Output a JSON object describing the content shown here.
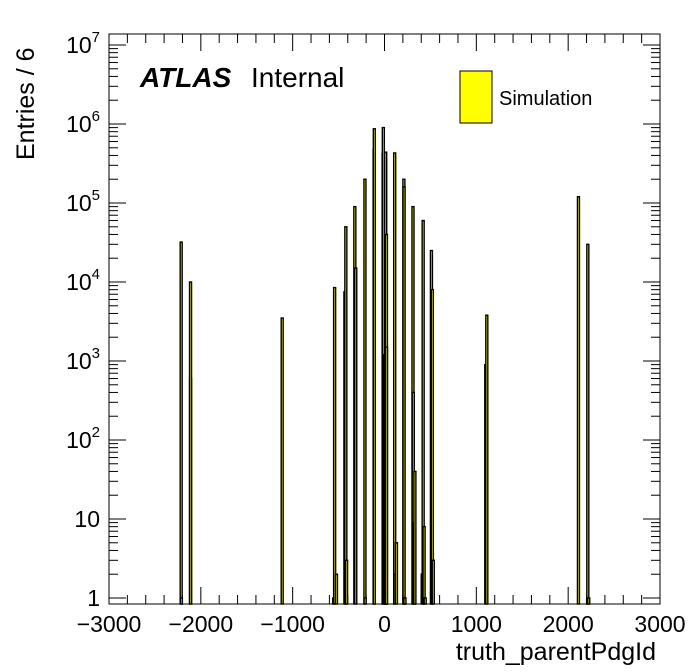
{
  "chart_data": {
    "type": "bar",
    "xlabel": "truth_parentPdgId",
    "ylabel": "Entries / 6",
    "xlim": [
      -3000,
      3000
    ],
    "ylim": [
      0.8,
      10000000
    ],
    "y_scale": "log",
    "x_ticks": [
      {
        "value": -3000,
        "label": "−3000"
      },
      {
        "value": -2000,
        "label": "−2000"
      },
      {
        "value": -1000,
        "label": "−1000"
      },
      {
        "value": 0,
        "label": "0"
      },
      {
        "value": 1000,
        "label": "1000"
      },
      {
        "value": 2000,
        "label": "2000"
      },
      {
        "value": 3000,
        "label": "3000"
      }
    ],
    "y_ticks": [
      {
        "value": 1,
        "base": "1",
        "exp": ""
      },
      {
        "value": 10,
        "base": "10",
        "exp": ""
      },
      {
        "value": 100,
        "base": "10",
        "exp": "2"
      },
      {
        "value": 1000,
        "base": "10",
        "exp": "3"
      },
      {
        "value": 10000,
        "base": "10",
        "exp": "4"
      },
      {
        "value": 100000,
        "base": "10",
        "exp": "5"
      },
      {
        "value": 1000000,
        "base": "10",
        "exp": "6"
      },
      {
        "value": 10000000,
        "base": "10",
        "exp": "7"
      }
    ],
    "atlas_label": "ATLAS",
    "status_label": "Internal",
    "legend": {
      "placement": "top-right",
      "entries": [
        {
          "name": "Simulation",
          "color": "#ffff00"
        }
      ]
    },
    "series": [
      {
        "name": "Simulation",
        "fill": "#ffff00",
        "line": "#000000",
        "x": [
          -2214,
          -2112,
          -2112,
          -2212,
          -1114,
          -553,
          -543,
          -523,
          -431,
          -421,
          -413,
          -323,
          -313,
          -213,
          -211,
          -113,
          -111,
          -15,
          -13,
          0,
          11,
          13,
          15,
          21,
          22,
          111,
          113,
          130,
          211,
          213,
          221,
          223,
          310,
          313,
          321,
          323,
          331,
          411,
          421,
          431,
          443,
          511,
          521,
          531,
          1103,
          1114,
          2112,
          2212,
          2214,
          2224
        ],
        "values": [
          32000,
          600,
          10000,
          1,
          3500,
          1,
          8500,
          2,
          7500,
          50000,
          3,
          90000,
          15000,
          200000,
          1,
          480000,
          870000,
          420000,
          900000,
          1200,
          330000,
          440000,
          2,
          40000,
          1500,
          430000,
          2,
          5,
          200000,
          160000,
          1,
          1,
          90000,
          400,
          9,
          3,
          40,
          2,
          60000,
          8,
          1,
          25000,
          8000,
          3,
          900,
          3800,
          120000,
          1,
          30000,
          1
        ]
      }
    ]
  }
}
